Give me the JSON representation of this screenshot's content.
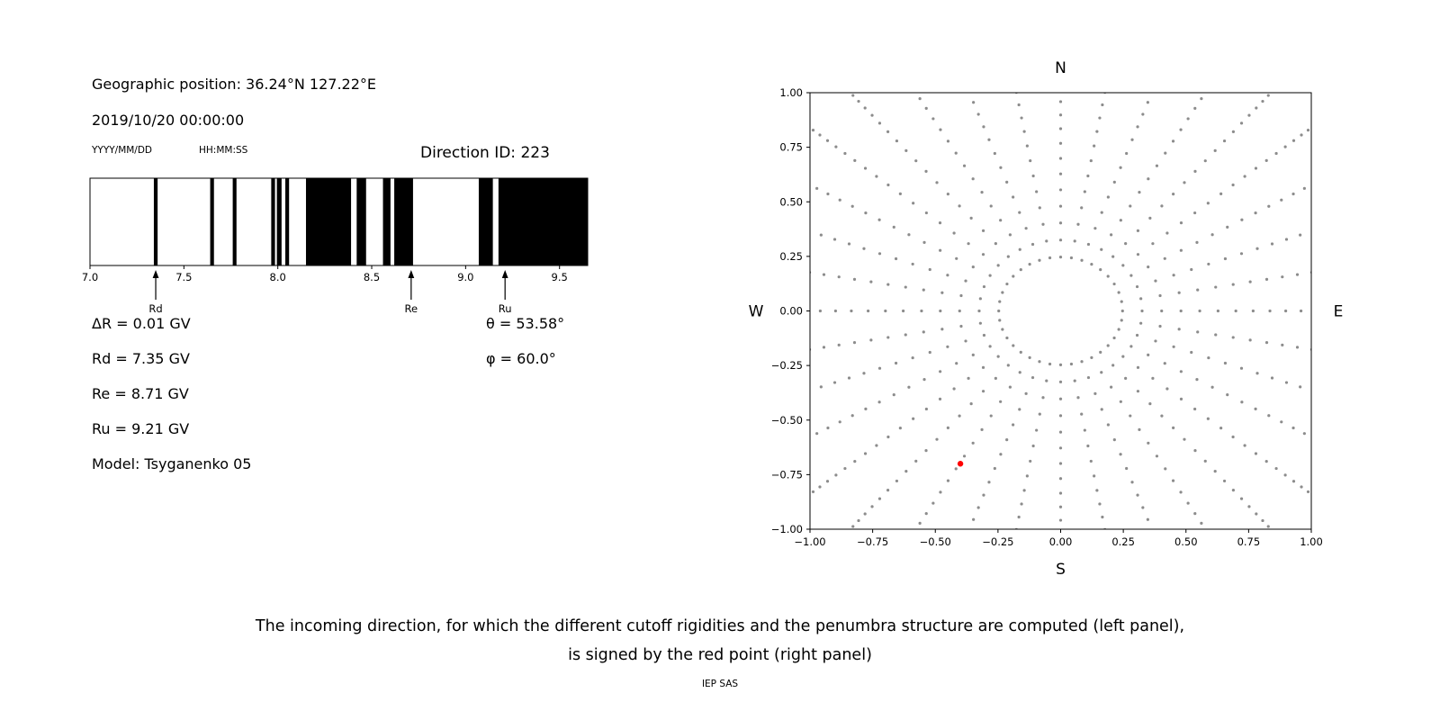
{
  "header": {
    "geo_position": "Geographic position: 36.24°N 127.22°E",
    "datetime": "2019/10/20 00:00:00",
    "date_format_hint": "YYYY/MM/DD",
    "time_format_hint": "HH:MM:SS",
    "direction_id": "Direction ID: 223"
  },
  "left_info": {
    "delta_r": "ΔR = 0.01 GV",
    "rd": "Rd = 7.35 GV",
    "re": "Re = 8.71 GV",
    "ru": "Ru = 9.21 GV",
    "model": "Model: Tsyganenko 05",
    "theta": "θ = 53.58°",
    "phi": "φ = 60.0°"
  },
  "caption": {
    "line1": "The incoming direction, for which the different cutoff rigidities and the penumbra structure are computed (left panel),",
    "line2": "is signed by the red point (right panel)",
    "credit": "IEP SAS"
  },
  "chart_data": [
    {
      "type": "bar",
      "name": "penumbra-structure",
      "description": "Penumbra structure: black bands = allowed rigidity intervals (GV)",
      "xlim": [
        7.0,
        9.65
      ],
      "x_ticks": [
        7.0,
        7.5,
        8.0,
        8.5,
        9.0,
        9.5
      ],
      "x_tick_labels": [
        "7.0",
        "7.5",
        "8.0",
        "8.5",
        "9.0",
        "9.5"
      ],
      "allowed_intervals_gv": [
        [
          7.34,
          7.36
        ],
        [
          7.64,
          7.66
        ],
        [
          7.76,
          7.78
        ],
        [
          7.965,
          7.985
        ],
        [
          7.995,
          8.02
        ],
        [
          8.04,
          8.06
        ],
        [
          8.15,
          8.39
        ],
        [
          8.42,
          8.47
        ],
        [
          8.56,
          8.6
        ],
        [
          8.62,
          8.72
        ],
        [
          9.07,
          9.145
        ],
        [
          9.175,
          9.65
        ]
      ],
      "markers": [
        {
          "label": "Rd",
          "value": 7.35
        },
        {
          "label": "Re",
          "value": 8.71
        },
        {
          "label": "Ru",
          "value": 9.21
        }
      ],
      "colors": {
        "allowed": "#000000",
        "forbidden": "#ffffff",
        "frame": "#000000"
      }
    },
    {
      "type": "scatter",
      "name": "incoming-direction-grid",
      "compass_labels": {
        "top": "N",
        "bottom": "S",
        "left": "W",
        "right": "E"
      },
      "xlim": [
        -1,
        1
      ],
      "ylim": [
        -1,
        1
      ],
      "tick_values": [
        -1.0,
        -0.75,
        -0.5,
        -0.25,
        0.0,
        0.25,
        0.5,
        0.75,
        1.0
      ],
      "tick_labels": [
        "−1.00",
        "−0.75",
        "−0.50",
        "−0.25",
        "0.00",
        "0.25",
        "0.50",
        "0.75",
        "1.00"
      ],
      "grid": {
        "azimuth_step_deg": 10,
        "radii": [
          0.247,
          0.325,
          0.403,
          0.48,
          0.555,
          0.628,
          0.699,
          0.768,
          0.835,
          0.898,
          0.959,
          1.017,
          1.072,
          1.123,
          1.17,
          1.214,
          1.254,
          1.289,
          1.321,
          1.348,
          1.371,
          1.39,
          1.404,
          1.413,
          1.418
        ]
      },
      "dot_color": "#8c8c8c",
      "red_point": {
        "x": -0.4,
        "y": -0.7,
        "color": "#ff0000"
      }
    }
  ]
}
